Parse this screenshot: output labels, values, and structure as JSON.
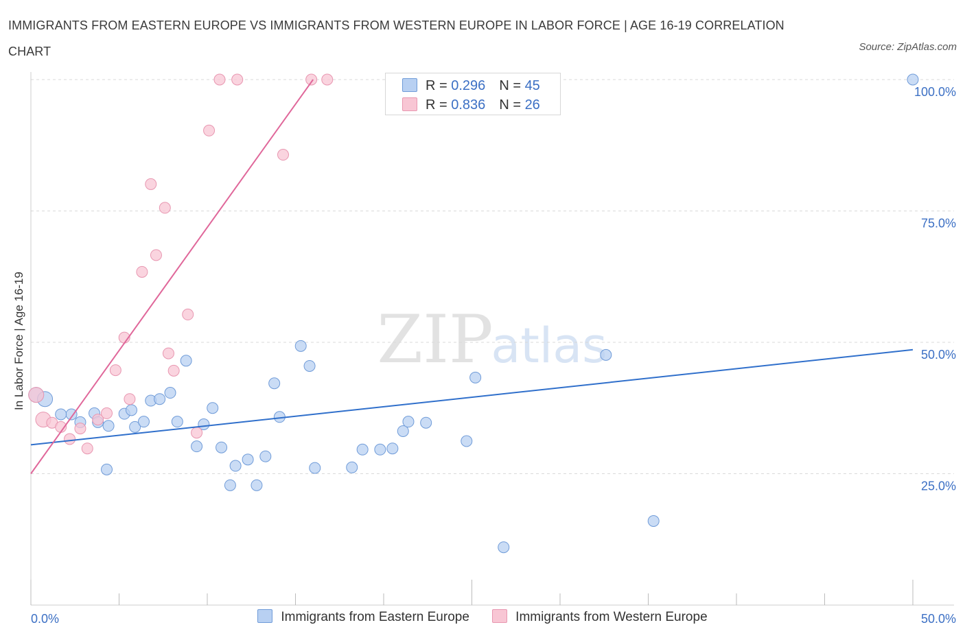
{
  "title": "IMMIGRANTS FROM EASTERN EUROPE VS IMMIGRANTS FROM WESTERN EUROPE IN LABOR FORCE | AGE 16-19 CORRELATION CHART",
  "source": "Source: ZipAtlas.com",
  "watermark": {
    "zip": "ZIP",
    "atlas": "atlas"
  },
  "colors": {
    "blue_fill": "#b8d0f2",
    "blue_stroke": "#6f9bd8",
    "blue_line": "#2f6fcb",
    "pink_fill": "#f8c6d4",
    "pink_stroke": "#e896b0",
    "pink_line": "#e0679a",
    "tick_label": "#3b6fc4",
    "grid": "#d9d9d9"
  },
  "legend": {
    "series": [
      {
        "name": "Immigrants from Eastern Europe",
        "r_label": "R =",
        "r_value": "0.296",
        "n_label": "N =",
        "n_value": "45"
      },
      {
        "name": "Immigrants from Western Europe",
        "r_label": "R =",
        "r_value": "0.836",
        "n_label": "N =",
        "n_value": "26"
      }
    ]
  },
  "chart_data": {
    "type": "scatter",
    "title": "IMMIGRANTS FROM EASTERN EUROPE VS IMMIGRANTS FROM WESTERN EUROPE IN LABOR FORCE | AGE 16-19 CORRELATION CHART",
    "xlabel": "",
    "ylabel": "In Labor Force | Age 16-19",
    "xlim": [
      0,
      50
    ],
    "ylim": [
      0,
      100
    ],
    "x_tick_labels": [
      "0.0%",
      "50.0%"
    ],
    "y_tick_labels": [
      "25.0%",
      "50.0%",
      "75.0%",
      "100.0%"
    ],
    "y_ticks": [
      25,
      50,
      75,
      100
    ],
    "grid": true,
    "legend_placement": "top-center",
    "series": [
      {
        "name": "Immigrants from Eastern Europe",
        "color": "blue",
        "trend": [
          [
            0,
            30.5
          ],
          [
            50,
            48.6
          ]
        ],
        "points": [
          [
            0.3,
            40.0
          ],
          [
            0.8,
            39.2
          ],
          [
            2.3,
            36.3
          ],
          [
            2.8,
            34.8
          ],
          [
            3.6,
            36.5
          ],
          [
            3.8,
            34.8
          ],
          [
            4.4,
            34.1
          ],
          [
            5.3,
            36.4
          ],
          [
            5.7,
            37.1
          ],
          [
            5.9,
            33.9
          ],
          [
            6.4,
            34.9
          ],
          [
            6.8,
            38.9
          ],
          [
            7.3,
            39.2
          ],
          [
            7.9,
            40.4
          ],
          [
            8.3,
            34.9
          ],
          [
            8.8,
            46.5
          ],
          [
            9.4,
            30.2
          ],
          [
            9.8,
            34.4
          ],
          [
            10.3,
            37.5
          ],
          [
            10.8,
            30.0
          ],
          [
            11.3,
            22.8
          ],
          [
            11.6,
            26.5
          ],
          [
            12.3,
            27.7
          ],
          [
            12.8,
            22.8
          ],
          [
            13.3,
            28.3
          ],
          [
            13.8,
            42.2
          ],
          [
            14.1,
            35.8
          ],
          [
            15.3,
            49.3
          ],
          [
            15.8,
            45.5
          ],
          [
            16.1,
            26.1
          ],
          [
            18.2,
            26.2
          ],
          [
            18.8,
            29.6
          ],
          [
            19.8,
            29.6
          ],
          [
            20.5,
            29.8
          ],
          [
            21.1,
            33.1
          ],
          [
            21.4,
            34.9
          ],
          [
            22.4,
            34.7
          ],
          [
            24.7,
            31.2
          ],
          [
            25.2,
            43.3
          ],
          [
            26.8,
            11.0
          ],
          [
            32.6,
            47.6
          ],
          [
            35.3,
            16.0
          ],
          [
            50.0,
            100.0
          ],
          [
            1.7,
            36.3
          ],
          [
            4.3,
            25.8
          ]
        ]
      },
      {
        "name": "Immigrants from Western Europe",
        "color": "pink",
        "trend": [
          [
            0,
            25.0
          ],
          [
            16,
            100.0
          ]
        ],
        "points": [
          [
            0.3,
            40.0
          ],
          [
            0.7,
            35.3
          ],
          [
            1.2,
            34.7
          ],
          [
            1.7,
            33.9
          ],
          [
            2.2,
            31.6
          ],
          [
            2.8,
            33.6
          ],
          [
            3.2,
            29.8
          ],
          [
            3.8,
            35.3
          ],
          [
            4.3,
            36.5
          ],
          [
            4.8,
            44.7
          ],
          [
            5.3,
            50.9
          ],
          [
            5.6,
            39.2
          ],
          [
            6.3,
            63.4
          ],
          [
            6.8,
            80.1
          ],
          [
            7.1,
            66.6
          ],
          [
            7.6,
            75.6
          ],
          [
            7.8,
            47.9
          ],
          [
            8.1,
            44.6
          ],
          [
            8.9,
            55.3
          ],
          [
            9.4,
            32.8
          ],
          [
            10.1,
            90.3
          ],
          [
            10.7,
            100.0
          ],
          [
            11.7,
            100.0
          ],
          [
            14.3,
            85.7
          ],
          [
            15.9,
            100.0
          ],
          [
            16.8,
            100.0
          ]
        ]
      }
    ]
  }
}
